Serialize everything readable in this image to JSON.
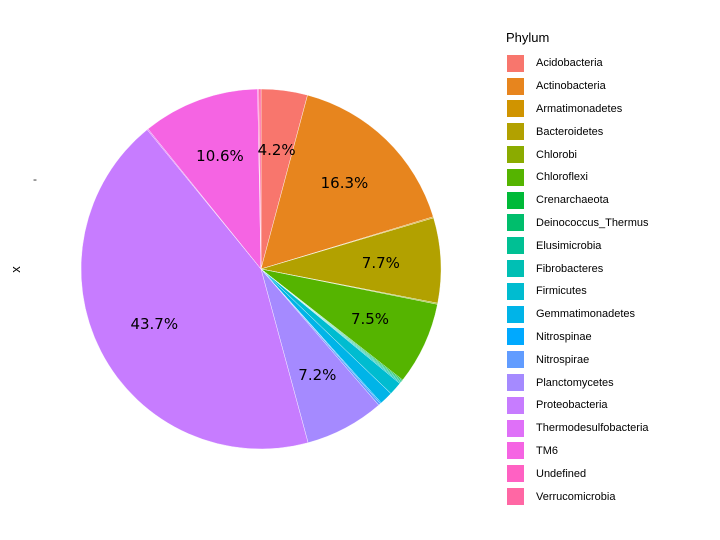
{
  "chart_data": {
    "type": "pie",
    "ylabel": "x",
    "y_tick_label": "-",
    "legend_title": "Phylum",
    "legend_placement": "right",
    "grid": false,
    "direction": "clockwise",
    "slices": [
      {
        "name": "Acidobacteria",
        "value": 4.2,
        "label": "4.2%",
        "color": "#F8766D"
      },
      {
        "name": "Actinobacteria",
        "value": 16.3,
        "label": "16.3%",
        "color": "#E7851E"
      },
      {
        "name": "Armatimonadetes",
        "value": 0.1,
        "label": "",
        "color": "#D09400"
      },
      {
        "name": "Bacteroidetes",
        "value": 7.7,
        "label": "7.7%",
        "color": "#B2A100"
      },
      {
        "name": "Chlorobi",
        "value": 0.1,
        "label": "",
        "color": "#8BAB00"
      },
      {
        "name": "Chloroflexi",
        "value": 7.5,
        "label": "7.5%",
        "color": "#55B400"
      },
      {
        "name": "Crenarchaeota",
        "value": 0.1,
        "label": "",
        "color": "#00BA38"
      },
      {
        "name": "Deinococcus_Thermus",
        "value": 0.1,
        "label": "",
        "color": "#00BE6C"
      },
      {
        "name": "Elusimicrobia",
        "value": 0.1,
        "label": "",
        "color": "#00C094"
      },
      {
        "name": "Fibrobacteres",
        "value": 0.1,
        "label": "",
        "color": "#00BFB4"
      },
      {
        "name": "Firmicutes",
        "value": 1.2,
        "label": "",
        "color": "#00BCD0"
      },
      {
        "name": "Gemmatimonadetes",
        "value": 1.2,
        "label": "",
        "color": "#00B4E8"
      },
      {
        "name": "Nitrospinae",
        "value": 0.1,
        "label": "",
        "color": "#00A9FF"
      },
      {
        "name": "Nitrospirae",
        "value": 0.2,
        "label": "",
        "color": "#619CFF"
      },
      {
        "name": "Planctomycetes",
        "value": 7.2,
        "label": "7.2%",
        "color": "#A58AFF"
      },
      {
        "name": "Proteobacteria",
        "value": 43.7,
        "label": "43.7%",
        "color": "#C77CFF"
      },
      {
        "name": "Thermodesulfobacteria",
        "value": 0.1,
        "label": "",
        "color": "#DF70F8"
      },
      {
        "name": "TM6",
        "value": 10.6,
        "label": "10.6%",
        "color": "#F564E3"
      },
      {
        "name": "Undefined",
        "value": 0.1,
        "label": "",
        "color": "#FF61C3"
      },
      {
        "name": "Verrucomicrobia",
        "value": 0.2,
        "label": "",
        "color": "#FF67A4"
      }
    ]
  }
}
